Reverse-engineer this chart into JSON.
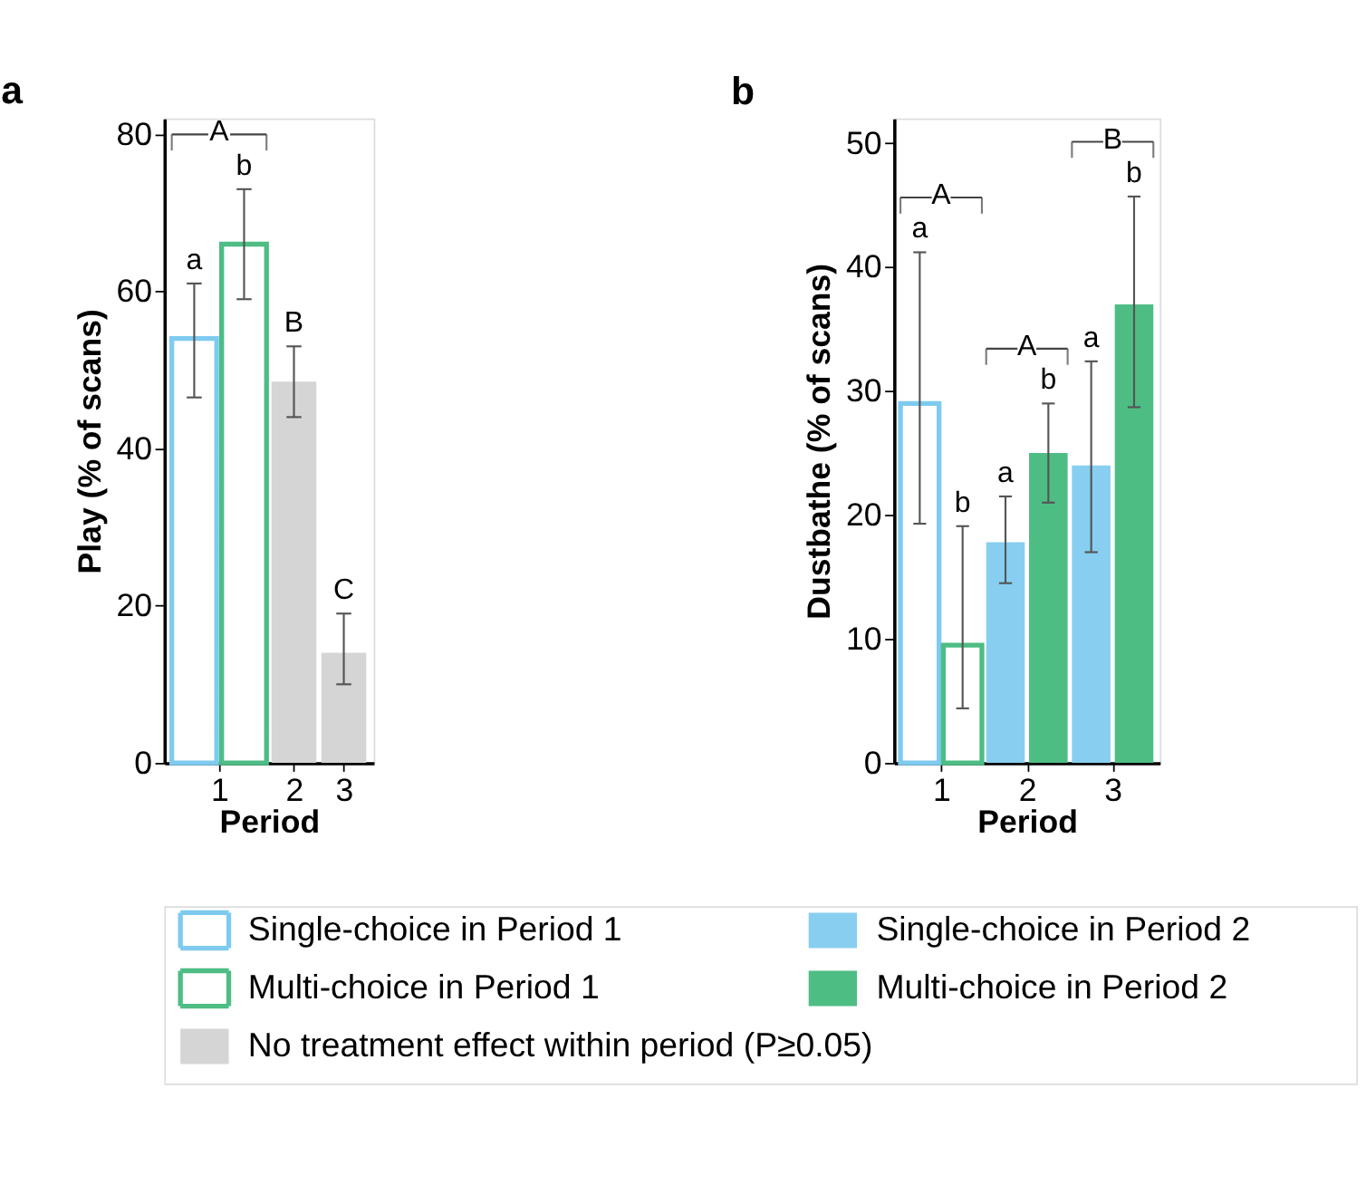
{
  "chart_data": [
    {
      "type": "bar",
      "title": "a",
      "xlabel": "Period",
      "ylabel": "Play (% of scans)",
      "categories": [
        "1",
        "2",
        "3"
      ],
      "ylim": [
        0,
        82
      ],
      "yticks": [
        0,
        20,
        40,
        60,
        80
      ],
      "legend": "bottom",
      "annotations": [
        "a",
        "b",
        "B",
        "C",
        "A"
      ],
      "series": [
        {
          "name": "Single-choice in Period 1",
          "color": "#7ecbef",
          "line_style": "solid",
          "values": [
            54,
            null,
            null
          ],
          "errors": [
            [
              46.5,
              61
            ],
            null,
            null
          ]
        },
        {
          "name": "Multi-choice in Period 1",
          "color": "#4dbd84",
          "line_style": "solid",
          "values": [
            66,
            null,
            null
          ],
          "errors": [
            [
              59,
              73
            ],
            null,
            null
          ]
        },
        {
          "name": "No treatment effect within period (P≥0.05)",
          "color": "#d4d5d4",
          "values": [
            null,
            48.5,
            14
          ],
          "errors": [
            null,
            [
              44,
              53
            ],
            [
              10,
              19
            ]
          ]
        }
      ]
    },
    {
      "type": "bar",
      "title": "b",
      "xlabel": "Period",
      "ylabel": "Dustbathe (% of scans)",
      "categories": [
        "1",
        "2",
        "3"
      ],
      "ylim": [
        0,
        52
      ],
      "yticks": [
        0,
        10,
        20,
        30,
        40,
        50
      ],
      "legend": "bottom",
      "annotations": [
        "a",
        "b",
        "a",
        "b",
        "a",
        "b",
        "A",
        "A",
        "B"
      ],
      "series": [
        {
          "name": "Single-choice in Period 1",
          "color": "#7ecbef",
          "line_style": "solid",
          "values": [
            29,
            null,
            null
          ],
          "errors": [
            [
              19.3,
              41.2
            ],
            null,
            null
          ]
        },
        {
          "name": "Multi-choice in Period 1",
          "color": "#4dbd84",
          "line_style": "solid",
          "values": [
            9.5,
            null,
            null
          ],
          "errors": [
            [
              4.4,
              19.1
            ],
            null,
            null
          ]
        },
        {
          "name": "Single-choice in Period 2",
          "color": "#87cef0",
          "values": [
            null,
            17.8,
            24
          ],
          "errors": [
            null,
            [
              14.5,
              21.5
            ],
            [
              17,
              32.4
            ]
          ]
        },
        {
          "name": "Multi-choice in Period 2",
          "color": "#4dbd84",
          "values": [
            null,
            25,
            37
          ],
          "errors": [
            null,
            [
              21,
              29
            ],
            [
              28.7,
              45.7
            ]
          ]
        }
      ]
    }
  ]
}
